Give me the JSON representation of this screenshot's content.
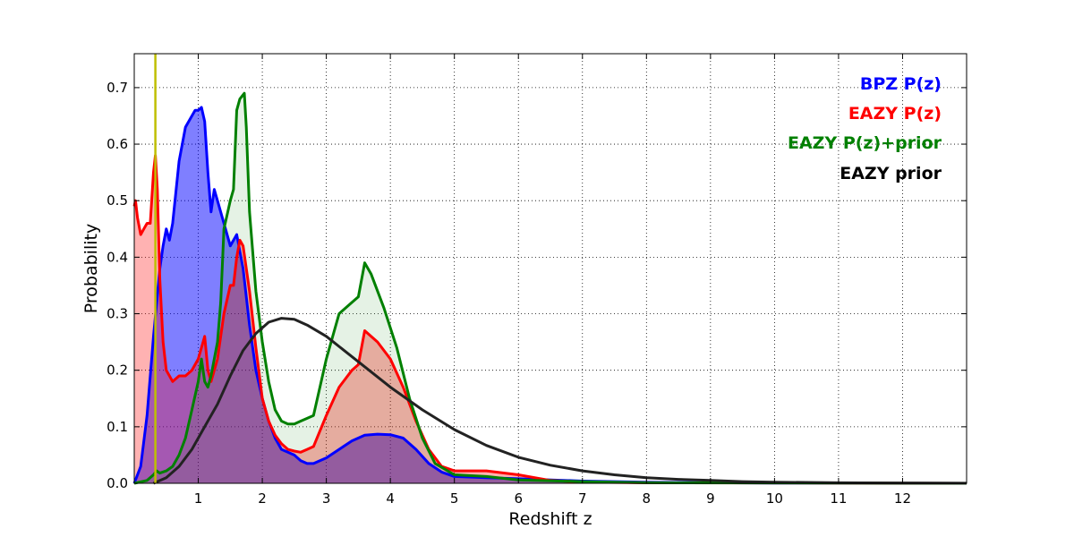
{
  "chart_data": {
    "type": "area",
    "xlabel": "Redshift z",
    "ylabel": "Probability",
    "xlim": [
      0,
      13
    ],
    "ylim": [
      0,
      0.76
    ],
    "grid": true,
    "legend_position": "top-right",
    "x_ticks": [
      1,
      2,
      3,
      4,
      5,
      6,
      7,
      8,
      9,
      10,
      11,
      12
    ],
    "y_ticks": [
      0.0,
      0.1,
      0.2,
      0.3,
      0.4,
      0.5,
      0.6,
      0.7
    ],
    "y_tick_labels": [
      "0.0",
      "0.1",
      "0.2",
      "0.3",
      "0.4",
      "0.5",
      "0.6",
      "0.7"
    ],
    "vertical_line": {
      "x": 0.33,
      "color": "#bfbf00"
    },
    "series": [
      {
        "name": "BPZ P(z)",
        "color": "#0000ff",
        "fill": "#0000ff",
        "fill_opacity": 0.5,
        "points": [
          [
            0,
            0
          ],
          [
            0.1,
            0.03
          ],
          [
            0.2,
            0.12
          ],
          [
            0.3,
            0.26
          ],
          [
            0.4,
            0.38
          ],
          [
            0.45,
            0.42
          ],
          [
            0.5,
            0.45
          ],
          [
            0.55,
            0.43
          ],
          [
            0.6,
            0.46
          ],
          [
            0.7,
            0.57
          ],
          [
            0.8,
            0.63
          ],
          [
            0.9,
            0.65
          ],
          [
            0.95,
            0.66
          ],
          [
            1.0,
            0.66
          ],
          [
            1.05,
            0.665
          ],
          [
            1.1,
            0.64
          ],
          [
            1.15,
            0.55
          ],
          [
            1.2,
            0.48
          ],
          [
            1.25,
            0.52
          ],
          [
            1.3,
            0.5
          ],
          [
            1.4,
            0.46
          ],
          [
            1.5,
            0.42
          ],
          [
            1.6,
            0.44
          ],
          [
            1.7,
            0.38
          ],
          [
            1.8,
            0.28
          ],
          [
            1.9,
            0.2
          ],
          [
            2.0,
            0.15
          ],
          [
            2.1,
            0.11
          ],
          [
            2.2,
            0.08
          ],
          [
            2.3,
            0.06
          ],
          [
            2.4,
            0.055
          ],
          [
            2.5,
            0.05
          ],
          [
            2.6,
            0.04
          ],
          [
            2.7,
            0.035
          ],
          [
            2.8,
            0.035
          ],
          [
            3.0,
            0.045
          ],
          [
            3.2,
            0.06
          ],
          [
            3.4,
            0.075
          ],
          [
            3.6,
            0.085
          ],
          [
            3.8,
            0.087
          ],
          [
            4.0,
            0.086
          ],
          [
            4.2,
            0.08
          ],
          [
            4.4,
            0.06
          ],
          [
            4.6,
            0.035
          ],
          [
            4.8,
            0.02
          ],
          [
            5.0,
            0.012
          ],
          [
            5.5,
            0.01
          ],
          [
            6.0,
            0.008
          ],
          [
            7,
            0.004
          ],
          [
            8,
            0.002
          ],
          [
            9,
            0.001
          ],
          [
            10,
            0.0005
          ],
          [
            11,
            0.0003
          ],
          [
            13,
            0
          ]
        ]
      },
      {
        "name": "EAZY P(z)",
        "color": "#ff0000",
        "fill": "#ff0000",
        "fill_opacity": 0.3,
        "points": [
          [
            0,
            0.49
          ],
          [
            0.02,
            0.5
          ],
          [
            0.05,
            0.47
          ],
          [
            0.1,
            0.44
          ],
          [
            0.15,
            0.45
          ],
          [
            0.2,
            0.46
          ],
          [
            0.25,
            0.46
          ],
          [
            0.3,
            0.55
          ],
          [
            0.33,
            0.58
          ],
          [
            0.36,
            0.52
          ],
          [
            0.4,
            0.36
          ],
          [
            0.45,
            0.25
          ],
          [
            0.5,
            0.2
          ],
          [
            0.6,
            0.18
          ],
          [
            0.7,
            0.19
          ],
          [
            0.8,
            0.19
          ],
          [
            0.9,
            0.2
          ],
          [
            1.0,
            0.22
          ],
          [
            1.1,
            0.26
          ],
          [
            1.15,
            0.2
          ],
          [
            1.2,
            0.18
          ],
          [
            1.3,
            0.22
          ],
          [
            1.4,
            0.3
          ],
          [
            1.5,
            0.35
          ],
          [
            1.55,
            0.35
          ],
          [
            1.6,
            0.4
          ],
          [
            1.65,
            0.43
          ],
          [
            1.7,
            0.42
          ],
          [
            1.8,
            0.34
          ],
          [
            1.9,
            0.24
          ],
          [
            2.0,
            0.15
          ],
          [
            2.1,
            0.11
          ],
          [
            2.2,
            0.085
          ],
          [
            2.3,
            0.07
          ],
          [
            2.4,
            0.06
          ],
          [
            2.5,
            0.057
          ],
          [
            2.6,
            0.055
          ],
          [
            2.7,
            0.06
          ],
          [
            2.8,
            0.065
          ],
          [
            3.0,
            0.12
          ],
          [
            3.2,
            0.17
          ],
          [
            3.4,
            0.2
          ],
          [
            3.5,
            0.21
          ],
          [
            3.6,
            0.27
          ],
          [
            3.8,
            0.25
          ],
          [
            4.0,
            0.22
          ],
          [
            4.2,
            0.17
          ],
          [
            4.4,
            0.11
          ],
          [
            4.6,
            0.06
          ],
          [
            4.8,
            0.03
          ],
          [
            5.0,
            0.022
          ],
          [
            5.5,
            0.022
          ],
          [
            6.0,
            0.015
          ],
          [
            6.5,
            0.005
          ],
          [
            7,
            0.002
          ],
          [
            8,
            0.001
          ],
          [
            13,
            0
          ]
        ]
      },
      {
        "name": "EAZY P(z)+prior",
        "color": "#008000",
        "fill": "#008000",
        "fill_opacity": 0.1,
        "points": [
          [
            0,
            0
          ],
          [
            0.2,
            0.005
          ],
          [
            0.3,
            0.015
          ],
          [
            0.35,
            0.022
          ],
          [
            0.4,
            0.018
          ],
          [
            0.5,
            0.022
          ],
          [
            0.6,
            0.03
          ],
          [
            0.7,
            0.05
          ],
          [
            0.8,
            0.08
          ],
          [
            0.9,
            0.13
          ],
          [
            1.0,
            0.18
          ],
          [
            1.05,
            0.22
          ],
          [
            1.1,
            0.18
          ],
          [
            1.15,
            0.17
          ],
          [
            1.2,
            0.19
          ],
          [
            1.3,
            0.25
          ],
          [
            1.35,
            0.32
          ],
          [
            1.4,
            0.45
          ],
          [
            1.5,
            0.5
          ],
          [
            1.55,
            0.52
          ],
          [
            1.6,
            0.66
          ],
          [
            1.65,
            0.68
          ],
          [
            1.72,
            0.69
          ],
          [
            1.75,
            0.63
          ],
          [
            1.8,
            0.48
          ],
          [
            1.9,
            0.34
          ],
          [
            2.0,
            0.25
          ],
          [
            2.1,
            0.18
          ],
          [
            2.2,
            0.13
          ],
          [
            2.3,
            0.11
          ],
          [
            2.4,
            0.105
          ],
          [
            2.5,
            0.105
          ],
          [
            2.6,
            0.11
          ],
          [
            2.7,
            0.115
          ],
          [
            2.8,
            0.12
          ],
          [
            3.0,
            0.22
          ],
          [
            3.2,
            0.3
          ],
          [
            3.4,
            0.32
          ],
          [
            3.5,
            0.33
          ],
          [
            3.6,
            0.39
          ],
          [
            3.7,
            0.37
          ],
          [
            3.9,
            0.31
          ],
          [
            4.1,
            0.24
          ],
          [
            4.3,
            0.15
          ],
          [
            4.5,
            0.08
          ],
          [
            4.7,
            0.035
          ],
          [
            5.0,
            0.015
          ],
          [
            5.5,
            0.012
          ],
          [
            6,
            0.006
          ],
          [
            7,
            0.003
          ],
          [
            8,
            0.001
          ],
          [
            13,
            0
          ]
        ]
      },
      {
        "name": "EAZY prior",
        "color": "#222222",
        "fill": "none",
        "fill_opacity": 0,
        "points": [
          [
            0.3,
            0
          ],
          [
            0.5,
            0.01
          ],
          [
            0.7,
            0.03
          ],
          [
            0.9,
            0.06
          ],
          [
            1.1,
            0.1
          ],
          [
            1.3,
            0.14
          ],
          [
            1.5,
            0.19
          ],
          [
            1.7,
            0.235
          ],
          [
            1.9,
            0.265
          ],
          [
            2.1,
            0.285
          ],
          [
            2.3,
            0.292
          ],
          [
            2.5,
            0.29
          ],
          [
            2.7,
            0.28
          ],
          [
            3.0,
            0.26
          ],
          [
            3.5,
            0.215
          ],
          [
            4.0,
            0.17
          ],
          [
            4.5,
            0.13
          ],
          [
            5.0,
            0.095
          ],
          [
            5.5,
            0.067
          ],
          [
            6.0,
            0.046
          ],
          [
            6.5,
            0.032
          ],
          [
            7.0,
            0.022
          ],
          [
            7.5,
            0.015
          ],
          [
            8.0,
            0.01
          ],
          [
            8.5,
            0.007
          ],
          [
            9.0,
            0.005
          ],
          [
            9.5,
            0.003
          ],
          [
            10,
            0.002
          ],
          [
            11,
            0.001
          ],
          [
            12,
            0.0005
          ],
          [
            13,
            0.0002
          ]
        ]
      }
    ]
  }
}
